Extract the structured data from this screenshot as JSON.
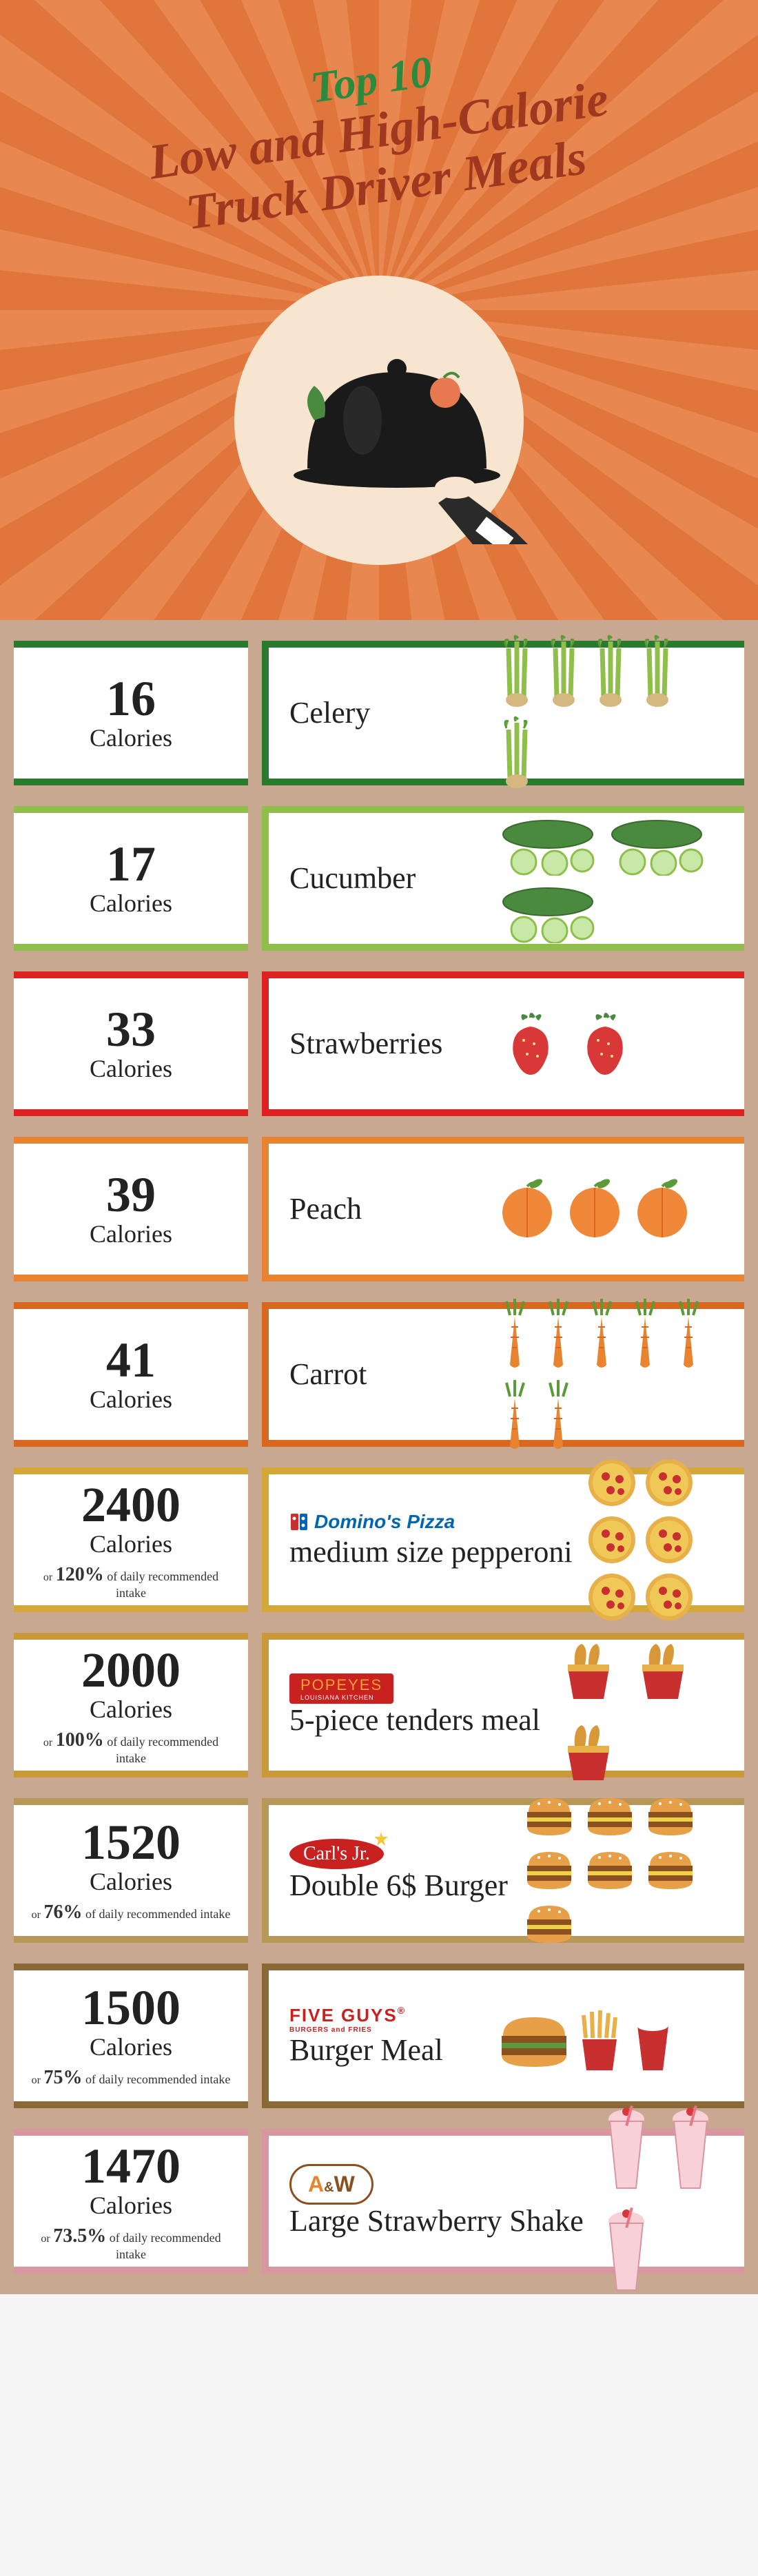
{
  "title": {
    "line1": "Top 10",
    "line2": "Low and High-Calorie",
    "line3": "Truck Driver Meals",
    "color_line1": "#2a8a3e",
    "color_rest": "#a03820",
    "fontsize_small": 64,
    "fontsize_large": 72
  },
  "header": {
    "bg_color": "#e88850",
    "ray_color_alt": "#e0763b",
    "circle_color": "#f7e5d0"
  },
  "spacer_color": "#c9a892",
  "calories_label": "Calories",
  "daily_intake_text": "of daily recommended intake",
  "or_text": "or",
  "rows": [
    {
      "calories": 16,
      "name": "Celery",
      "border_color": "#2a7a2e",
      "color_key": "green-dark",
      "icon": "celery",
      "icon_count": 5,
      "has_intake": false
    },
    {
      "calories": 17,
      "name": "Cucumber",
      "border_color": "#8fbf4a",
      "color_key": "green-light",
      "icon": "cucumber",
      "icon_count": 3,
      "has_intake": false
    },
    {
      "calories": 33,
      "name": "Strawberries",
      "border_color": "#d22",
      "color_key": "red",
      "icon": "strawberry",
      "icon_count": 2,
      "has_intake": false
    },
    {
      "calories": 39,
      "name": "Peach",
      "border_color": "#e8842f",
      "color_key": "orange",
      "icon": "peach",
      "icon_count": 3,
      "has_intake": false
    },
    {
      "calories": 41,
      "name": "Carrot",
      "border_color": "#d86820",
      "color_key": "orange-dark",
      "icon": "carrot",
      "icon_count": 7,
      "has_intake": false
    },
    {
      "calories": 2400,
      "name": "medium size pepperoni",
      "brand": "Domino's Pizza",
      "brand_style": "dominos",
      "border_color": "#d4a838",
      "color_key": "mustard",
      "icon": "pizza",
      "icon_count": 6,
      "has_intake": true,
      "intake_pct": "120%"
    },
    {
      "calories": 2000,
      "name": "5-piece tenders meal",
      "brand": "POPEYES",
      "brand_sub": "LOUISIANA KITCHEN",
      "brand_style": "popeyes",
      "border_color": "#c99838",
      "color_key": "gold",
      "icon": "tenders",
      "icon_count": 3,
      "has_intake": true,
      "intake_pct": "100%"
    },
    {
      "calories": 1520,
      "name": "Double 6$ Burger",
      "brand": "Carl's Jr.",
      "brand_style": "carls",
      "border_color": "#b89858",
      "color_key": "tan",
      "icon": "burger",
      "icon_count": 7,
      "has_intake": true,
      "intake_pct": "76%"
    },
    {
      "calories": 1500,
      "name": "Burger Meal",
      "brand": "FIVE GUYS",
      "brand_sub": "BURGERS and FRIES",
      "brand_style": "fiveguys",
      "border_color": "#8a6838",
      "color_key": "brown",
      "icon": "burger-meal",
      "icon_count": 1,
      "has_intake": true,
      "intake_pct": "75%"
    },
    {
      "calories": 1470,
      "name": "Large Strawberry Shake",
      "brand": "A&W",
      "brand_style": "aw",
      "border_color": "#d896a0",
      "color_key": "pink",
      "icon": "shake",
      "icon_count": 3,
      "has_intake": true,
      "intake_pct": "73.5%"
    }
  ],
  "typography": {
    "cal_num_fontsize": 72,
    "cal_label_fontsize": 36,
    "food_name_fontsize": 44,
    "intake_pct_fontsize": 28,
    "intake_text_fontsize": 18
  }
}
